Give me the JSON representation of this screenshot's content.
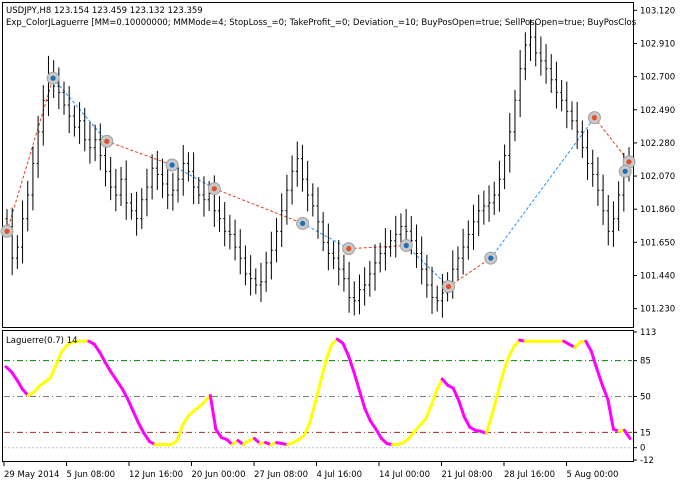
{
  "header": {
    "symbol_line": "USDJPY,H8  123.154 123.459 123.132 123.359",
    "expert_line": "Exp_ColorJLaguerre [MM=0.10000000; MMMode=4; StopLoss_=0; TakeProfit_=0; Deviation_=10; BuyPosOpen=true; SellPosOpen=true; BuyPosClos"
  },
  "indicator": {
    "label": "Laguerre(0.7) 14"
  },
  "colors": {
    "background": "#ffffff",
    "candle": "#000000",
    "buy_arrow": "#1f6fb8",
    "sell_arrow": "#e0502a",
    "buy_trade_line": "#1e90ff",
    "sell_trade_line": "#e04020",
    "laguerre_rising": "#ffff00",
    "laguerre_falling": "#ff00ff",
    "level_upper": "#008000",
    "level_lower": "#a52a2a",
    "level_mid": "#808080"
  },
  "chart_data": [
    {
      "type": "candlestick",
      "name": "USDJPY,H8",
      "title": "USDJPY,H8",
      "ylim": [
        101.12,
        103.16
      ],
      "y_ticks": [
        "103.120",
        "102.910",
        "102.700",
        "102.490",
        "102.280",
        "102.070",
        "101.860",
        "101.650",
        "101.440",
        "101.230"
      ],
      "x_ticks": [
        "29 May 2014",
        "5 Jun 08:00",
        "12 Jun 16:00",
        "20 Jun 00:00",
        "27 Jun 08:00",
        "4 Jul 16:00",
        "14 Jul 00:00",
        "21 Jul 08:00",
        "28 Jul 16:00",
        "5 Aug 00:00"
      ],
      "closes": [
        101.75,
        101.55,
        101.62,
        101.8,
        101.95,
        102.15,
        102.35,
        102.55,
        102.72,
        102.64,
        102.6,
        102.52,
        102.45,
        102.38,
        102.42,
        102.3,
        102.25,
        102.3,
        102.2,
        102.1,
        102.0,
        101.95,
        102.05,
        101.9,
        101.85,
        101.8,
        101.92,
        102.0,
        102.12,
        102.08,
        102.02,
        101.95,
        101.98,
        102.05,
        102.15,
        102.1,
        102.0,
        101.95,
        101.92,
        101.96,
        101.85,
        101.8,
        101.72,
        101.7,
        101.62,
        101.55,
        101.45,
        101.42,
        101.38,
        101.4,
        101.52,
        101.6,
        101.72,
        101.85,
        101.98,
        102.1,
        102.18,
        102.05,
        101.95,
        101.88,
        101.78,
        101.65,
        101.58,
        101.55,
        101.48,
        101.42,
        101.3,
        101.28,
        101.35,
        101.38,
        101.45,
        101.52,
        101.58,
        101.62,
        101.66,
        101.7,
        101.75,
        101.72,
        101.66,
        101.58,
        101.48,
        101.38,
        101.3,
        101.28,
        101.33,
        101.4,
        101.48,
        101.55,
        101.62,
        101.7,
        101.78,
        101.85,
        101.88,
        101.9,
        101.95,
        102.05,
        102.2,
        102.35,
        102.55,
        102.75,
        102.9,
        102.95,
        102.85,
        102.8,
        102.75,
        102.68,
        102.6,
        102.55,
        102.48,
        102.42,
        102.35,
        102.25,
        102.15,
        102.08,
        101.98,
        101.85,
        101.72,
        101.8,
        101.95,
        102.1,
        102.18
      ],
      "trade_markers": [
        {
          "side": "sell",
          "price": 101.72
        },
        {
          "side": "buy",
          "price": 102.69
        },
        {
          "side": "sell",
          "price": 102.29
        },
        {
          "side": "buy",
          "price": 102.14
        },
        {
          "side": "sell",
          "price": 101.99
        },
        {
          "side": "buy",
          "price": 101.77
        },
        {
          "side": "sell",
          "price": 101.61
        },
        {
          "side": "buy",
          "price": 101.63
        },
        {
          "side": "sell",
          "price": 101.37
        },
        {
          "side": "buy",
          "price": 101.55
        },
        {
          "side": "sell",
          "price": 102.44
        },
        {
          "side": "sell",
          "price": 102.16
        },
        {
          "side": "buy",
          "price": 102.1
        }
      ]
    },
    {
      "type": "line",
      "name": "Laguerre(0.7) 14",
      "title": "Laguerre(0.7) 14",
      "ylim": [
        -12,
        113
      ],
      "y_ticks": [
        "113",
        "85",
        "50",
        "15",
        "0",
        "-12"
      ],
      "levels": [
        85,
        50,
        15
      ],
      "values": [
        79,
        74,
        66,
        57,
        51,
        54,
        60,
        64,
        68,
        80,
        93,
        100,
        103,
        104,
        104,
        104,
        101,
        93,
        83,
        74,
        66,
        58,
        48,
        36,
        24,
        14,
        6,
        3,
        3,
        3,
        3,
        7,
        22,
        31,
        36,
        40,
        45,
        51,
        18,
        10,
        8,
        3,
        7,
        3,
        7,
        9,
        4,
        5,
        3,
        5,
        4,
        3,
        5,
        8,
        12,
        24,
        44,
        65,
        86,
        101,
        106,
        102,
        90,
        74,
        56,
        38,
        26,
        18,
        9,
        4,
        3,
        3,
        5,
        9,
        16,
        22,
        28,
        41,
        56,
        67,
        61,
        58,
        46,
        30,
        20,
        17,
        16,
        14,
        32,
        52,
        73,
        88,
        99,
        105,
        104,
        104,
        104,
        104,
        104,
        104,
        104,
        104,
        101,
        98,
        103,
        104,
        94,
        77,
        61,
        47,
        18,
        16,
        17,
        9
      ],
      "colors": "rising segments yellow, falling segments magenta"
    }
  ]
}
